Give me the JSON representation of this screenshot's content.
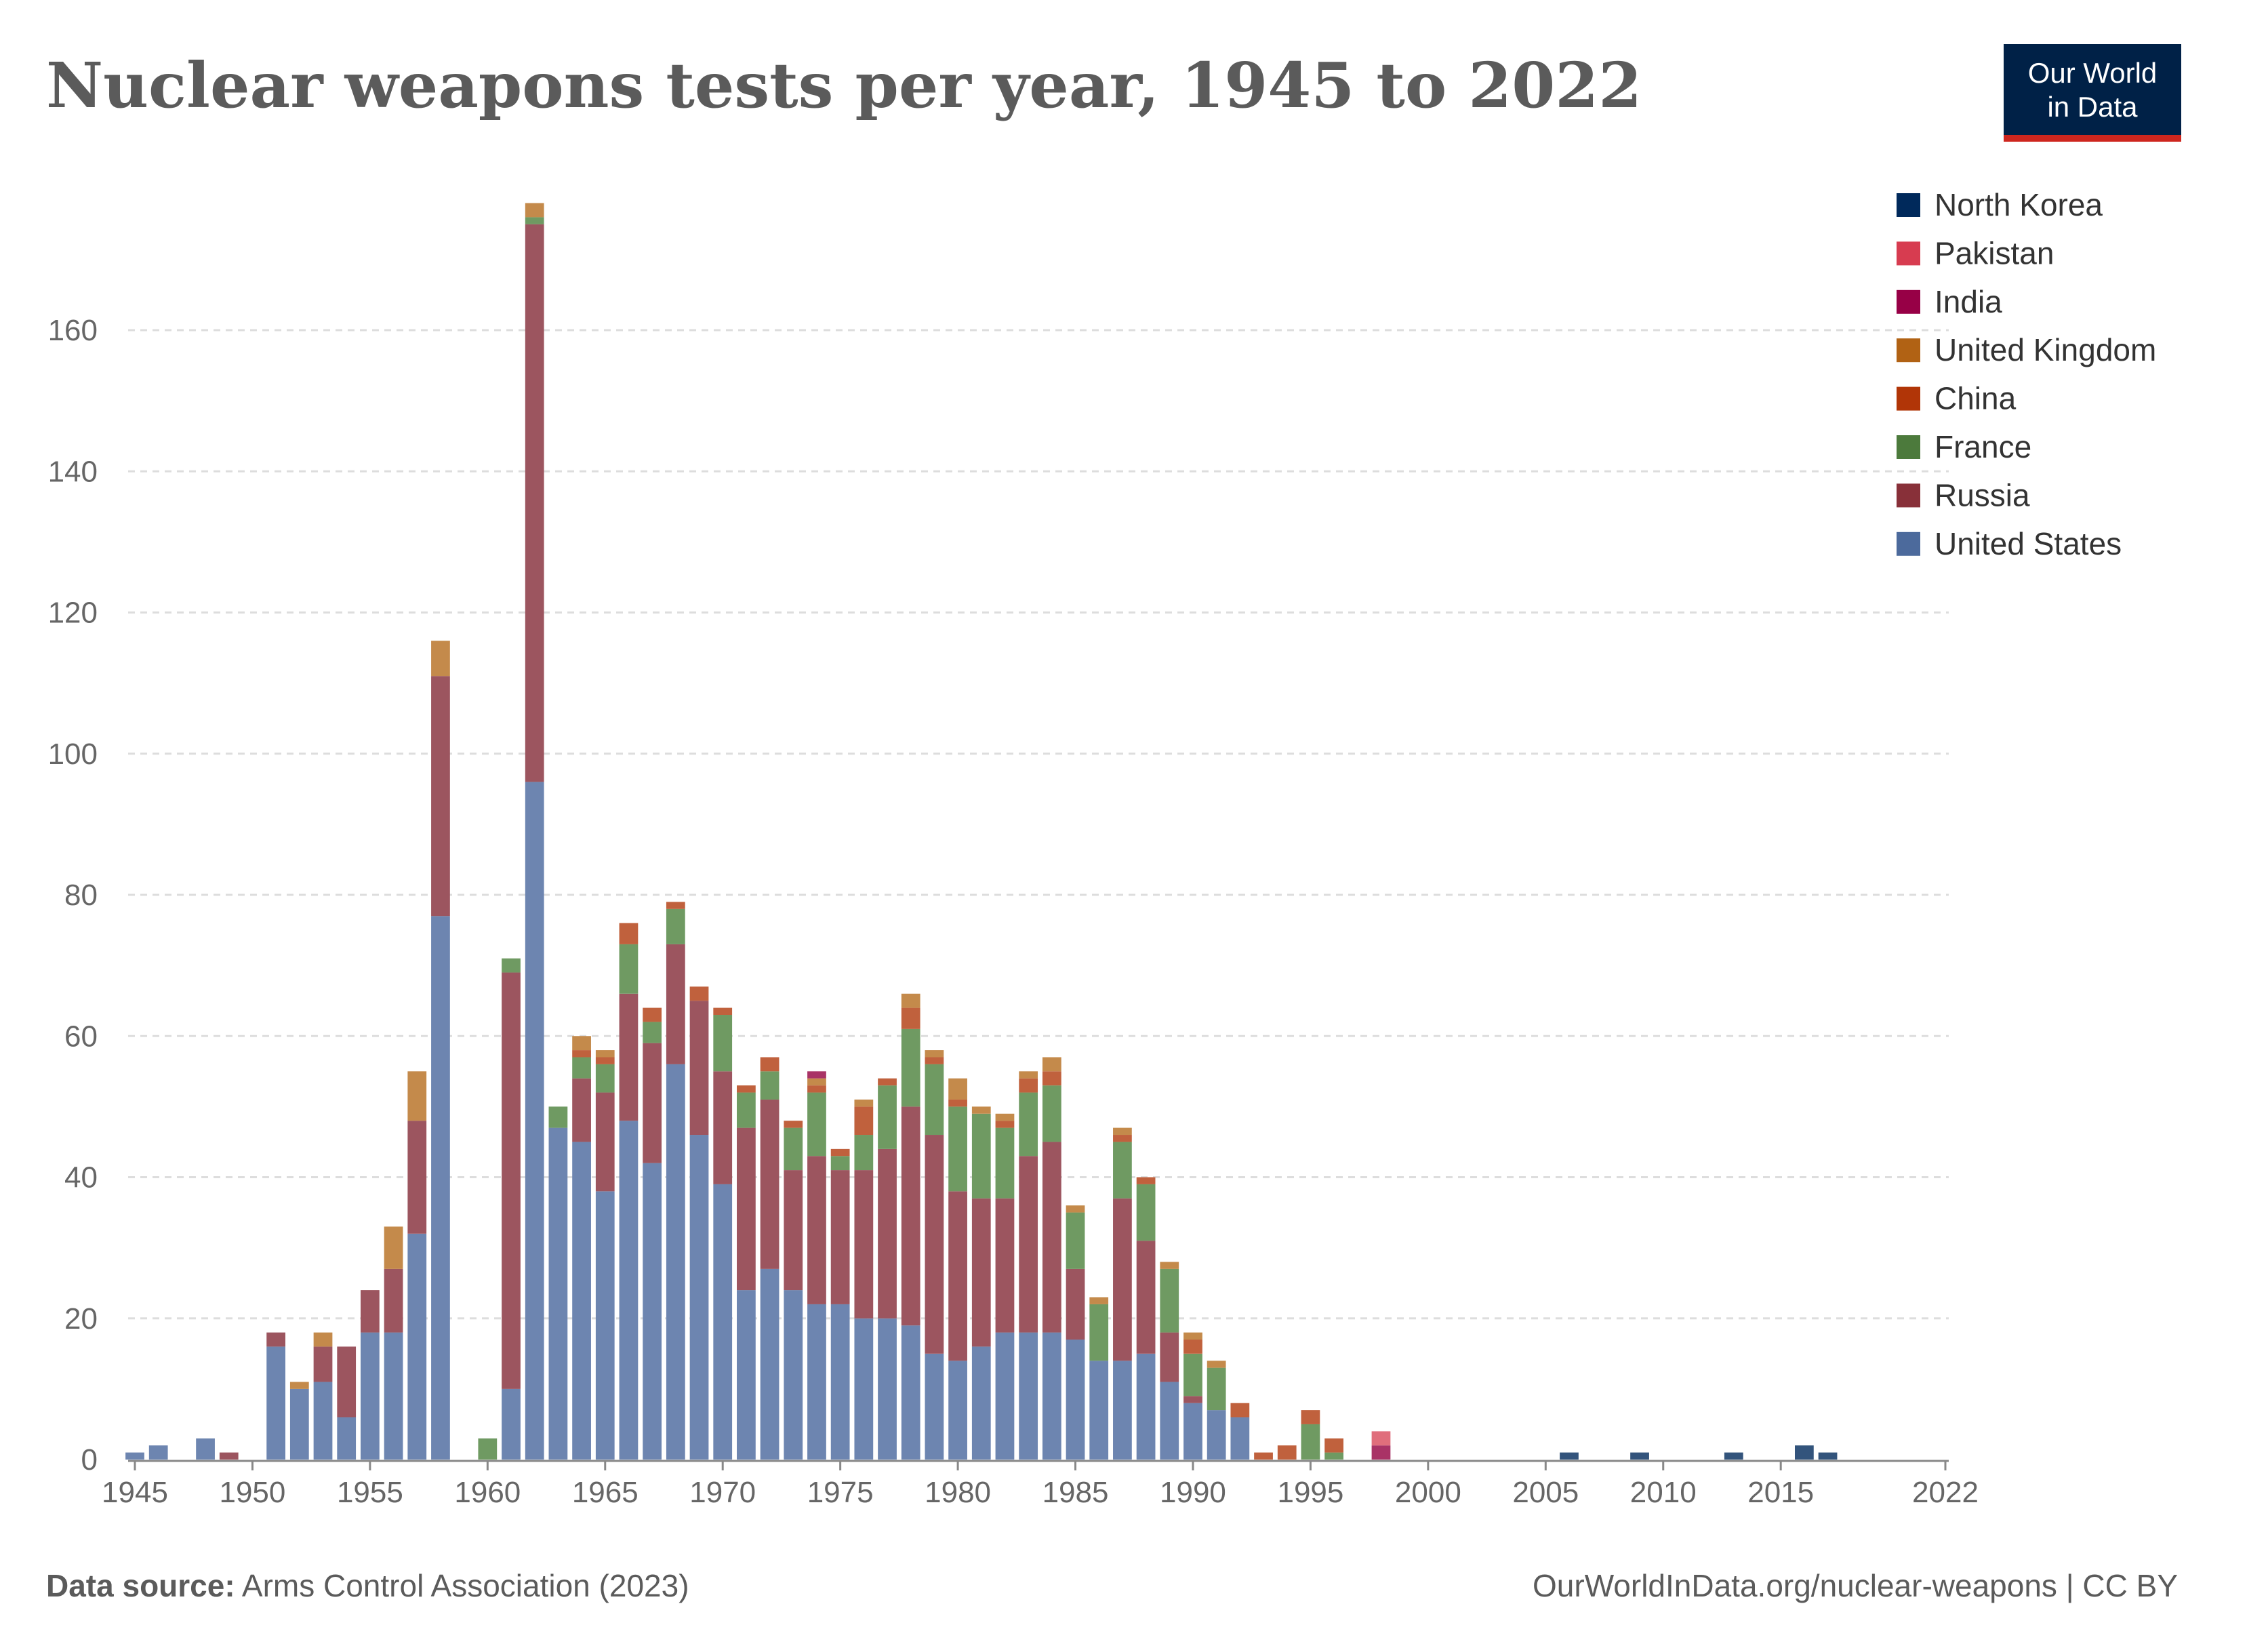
{
  "logo": {
    "line1": "Our World",
    "line2": "in Data"
  },
  "footer": {
    "source_label": "Data source:",
    "source": "Arms Control Association (2023)",
    "url": "OurWorldInData.org/nuclear-weapons",
    "license": "| CC BY"
  },
  "chart_data": {
    "type": "bar",
    "stacked": true,
    "title": "Nuclear weapons tests per year, 1945 to 2022",
    "xlabel": "",
    "ylabel": "",
    "ylim": [
      0,
      180
    ],
    "yticks": [
      0,
      20,
      40,
      60,
      80,
      100,
      120,
      140,
      160
    ],
    "xticks": [
      1945,
      1950,
      1955,
      1960,
      1965,
      1970,
      1975,
      1980,
      1985,
      1990,
      1995,
      2000,
      2005,
      2010,
      2015,
      2022
    ],
    "xlim": [
      1945,
      2022
    ],
    "grid": "horizontal dashed",
    "legend_position": "right",
    "years": [
      1945,
      1946,
      1947,
      1948,
      1949,
      1950,
      1951,
      1952,
      1953,
      1954,
      1955,
      1956,
      1957,
      1958,
      1959,
      1960,
      1961,
      1962,
      1963,
      1964,
      1965,
      1966,
      1967,
      1968,
      1969,
      1970,
      1971,
      1972,
      1973,
      1974,
      1975,
      1976,
      1977,
      1978,
      1979,
      1980,
      1981,
      1982,
      1983,
      1984,
      1985,
      1986,
      1987,
      1988,
      1989,
      1990,
      1991,
      1992,
      1993,
      1994,
      1995,
      1996,
      1997,
      1998,
      1999,
      2000,
      2001,
      2002,
      2003,
      2004,
      2005,
      2006,
      2007,
      2008,
      2009,
      2010,
      2011,
      2012,
      2013,
      2014,
      2015,
      2016,
      2017,
      2018,
      2019,
      2020,
      2021,
      2022
    ],
    "series": [
      {
        "name": "United States",
        "color": "#6d85b0",
        "values": [
          1,
          2,
          0,
          3,
          0,
          0,
          16,
          10,
          11,
          6,
          18,
          18,
          32,
          77,
          0,
          0,
          10,
          96,
          47,
          45,
          38,
          48,
          42,
          56,
          46,
          39,
          24,
          27,
          24,
          22,
          22,
          20,
          20,
          19,
          15,
          14,
          16,
          18,
          18,
          18,
          17,
          14,
          14,
          15,
          11,
          8,
          7,
          6,
          0,
          0,
          0,
          0,
          0,
          0,
          0,
          0,
          0,
          0,
          0,
          0,
          0,
          0,
          0,
          0,
          0,
          0,
          0,
          0,
          0,
          0,
          0,
          0,
          0,
          0,
          0,
          0,
          0,
          0
        ]
      },
      {
        "name": "Russia",
        "color": "#9c555f",
        "values": [
          0,
          0,
          0,
          0,
          1,
          0,
          2,
          0,
          5,
          10,
          6,
          9,
          16,
          34,
          0,
          0,
          59,
          79,
          0,
          9,
          14,
          18,
          17,
          17,
          19,
          16,
          23,
          24,
          17,
          21,
          19,
          21,
          24,
          31,
          31,
          24,
          21,
          19,
          25,
          27,
          10,
          0,
          23,
          16,
          7,
          1,
          0,
          0,
          0,
          0,
          0,
          0,
          0,
          0,
          0,
          0,
          0,
          0,
          0,
          0,
          0,
          0,
          0,
          0,
          0,
          0,
          0,
          0,
          0,
          0,
          0,
          0,
          0,
          0,
          0,
          0,
          0,
          0
        ]
      },
      {
        "name": "France",
        "color": "#6f9a62",
        "values": [
          0,
          0,
          0,
          0,
          0,
          0,
          0,
          0,
          0,
          0,
          0,
          0,
          0,
          0,
          0,
          3,
          2,
          1,
          3,
          3,
          4,
          7,
          3,
          5,
          0,
          8,
          5,
          4,
          6,
          9,
          2,
          5,
          9,
          11,
          10,
          12,
          12,
          10,
          9,
          8,
          8,
          8,
          8,
          8,
          9,
          6,
          6,
          0,
          0,
          0,
          5,
          1,
          0,
          0,
          0,
          0,
          0,
          0,
          0,
          0,
          0,
          0,
          0,
          0,
          0,
          0,
          0,
          0,
          0,
          0,
          0,
          0,
          0,
          0,
          0,
          0,
          0,
          0
        ]
      },
      {
        "name": "China",
        "color": "#c0613d",
        "values": [
          0,
          0,
          0,
          0,
          0,
          0,
          0,
          0,
          0,
          0,
          0,
          0,
          0,
          0,
          0,
          0,
          0,
          0,
          0,
          1,
          1,
          3,
          2,
          1,
          2,
          1,
          1,
          2,
          1,
          1,
          1,
          4,
          1,
          3,
          1,
          1,
          0,
          1,
          2,
          2,
          0,
          0,
          1,
          1,
          0,
          2,
          0,
          2,
          1,
          2,
          2,
          2,
          0,
          0,
          0,
          0,
          0,
          0,
          0,
          0,
          0,
          0,
          0,
          0,
          0,
          0,
          0,
          0,
          0,
          0,
          0,
          0,
          0,
          0,
          0,
          0,
          0,
          0
        ]
      },
      {
        "name": "United Kingdom",
        "color": "#c48a4b",
        "values": [
          0,
          0,
          0,
          0,
          0,
          0,
          0,
          1,
          2,
          0,
          0,
          6,
          7,
          5,
          0,
          0,
          0,
          2,
          0,
          2,
          1,
          0,
          0,
          0,
          0,
          0,
          0,
          0,
          0,
          1,
          0,
          1,
          0,
          2,
          1,
          3,
          1,
          1,
          1,
          2,
          1,
          1,
          1,
          0,
          1,
          1,
          1,
          0,
          0,
          0,
          0,
          0,
          0,
          0,
          0,
          0,
          0,
          0,
          0,
          0,
          0,
          0,
          0,
          0,
          0,
          0,
          0,
          0,
          0,
          0,
          0,
          0,
          0,
          0,
          0,
          0,
          0,
          0
        ]
      },
      {
        "name": "India",
        "color": "#a93366",
        "values": [
          0,
          0,
          0,
          0,
          0,
          0,
          0,
          0,
          0,
          0,
          0,
          0,
          0,
          0,
          0,
          0,
          0,
          0,
          0,
          0,
          0,
          0,
          0,
          0,
          0,
          0,
          0,
          0,
          0,
          1,
          0,
          0,
          0,
          0,
          0,
          0,
          0,
          0,
          0,
          0,
          0,
          0,
          0,
          0,
          0,
          0,
          0,
          0,
          0,
          0,
          0,
          0,
          0,
          2,
          0,
          0,
          0,
          0,
          0,
          0,
          0,
          0,
          0,
          0,
          0,
          0,
          0,
          0,
          0,
          0,
          0,
          0,
          0,
          0,
          0,
          0,
          0,
          0
        ]
      },
      {
        "name": "Pakistan",
        "color": "#e06e7c",
        "values": [
          0,
          0,
          0,
          0,
          0,
          0,
          0,
          0,
          0,
          0,
          0,
          0,
          0,
          0,
          0,
          0,
          0,
          0,
          0,
          0,
          0,
          0,
          0,
          0,
          0,
          0,
          0,
          0,
          0,
          0,
          0,
          0,
          0,
          0,
          0,
          0,
          0,
          0,
          0,
          0,
          0,
          0,
          0,
          0,
          0,
          0,
          0,
          0,
          0,
          0,
          0,
          0,
          0,
          2,
          0,
          0,
          0,
          0,
          0,
          0,
          0,
          0,
          0,
          0,
          0,
          0,
          0,
          0,
          0,
          0,
          0,
          0,
          0,
          0,
          0,
          0,
          0,
          0
        ]
      },
      {
        "name": "North Korea",
        "color": "#33547c",
        "values": [
          0,
          0,
          0,
          0,
          0,
          0,
          0,
          0,
          0,
          0,
          0,
          0,
          0,
          0,
          0,
          0,
          0,
          0,
          0,
          0,
          0,
          0,
          0,
          0,
          0,
          0,
          0,
          0,
          0,
          0,
          0,
          0,
          0,
          0,
          0,
          0,
          0,
          0,
          0,
          0,
          0,
          0,
          0,
          0,
          0,
          0,
          0,
          0,
          0,
          0,
          0,
          0,
          0,
          0,
          0,
          0,
          0,
          0,
          0,
          0,
          0,
          1,
          0,
          0,
          1,
          0,
          0,
          0,
          1,
          0,
          0,
          2,
          1,
          0,
          0,
          0,
          0,
          0
        ]
      }
    ],
    "legend_colors": {
      "North Korea": "#00295b",
      "Pakistan": "#d73c50",
      "India": "#970046",
      "United Kingdom": "#b16214",
      "China": "#b13507",
      "France": "#4c7a3c",
      "Russia": "#883039",
      "United States": "#4c6a9c"
    }
  }
}
